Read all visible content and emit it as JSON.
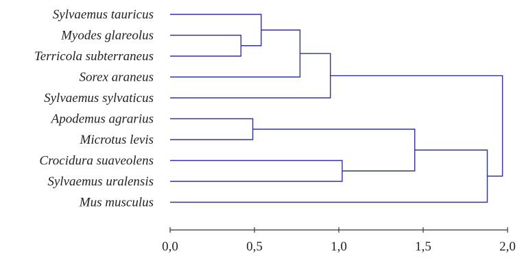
{
  "chart_data": {
    "type": "dendrogram",
    "orientation": "horizontal",
    "leaves": [
      "Sylvaemus tauricus",
      "Myodes glareolus",
      "Terricola subterraneus",
      "Sorex araneus",
      "Sylvaemus sylvaticus",
      "Apodemus agrarius",
      "Microtus levis",
      "Crocidura suaveolens",
      "Sylvaemus uralensis",
      "Mus musculus"
    ],
    "merges": [
      {
        "id": "A",
        "children": [
          "Myodes glareolus",
          "Terricola subterraneus"
        ],
        "distance": 0.42
      },
      {
        "id": "B",
        "children": [
          "Sylvaemus tauricus",
          "A"
        ],
        "distance": 0.54
      },
      {
        "id": "C",
        "children": [
          "B",
          "Sorex araneus"
        ],
        "distance": 0.77
      },
      {
        "id": "D",
        "children": [
          "C",
          "Sylvaemus sylvaticus"
        ],
        "distance": 0.95
      },
      {
        "id": "E",
        "children": [
          "Apodemus agrarius",
          "Microtus levis"
        ],
        "distance": 0.49
      },
      {
        "id": "F",
        "children": [
          "Crocidura suaveolens",
          "Sylvaemus uralensis"
        ],
        "distance": 1.02
      },
      {
        "id": "G",
        "children": [
          "E",
          "F"
        ],
        "distance": 1.45
      },
      {
        "id": "H",
        "children": [
          "G",
          "Mus musculus"
        ],
        "distance": 1.88
      },
      {
        "id": "I",
        "children": [
          "D",
          "H"
        ],
        "distance": 1.97
      }
    ],
    "xlim": [
      0,
      2.0
    ],
    "ticks": [
      0,
      0.5,
      1.0,
      1.5,
      2.0
    ],
    "tick_labels": [
      "0,0",
      "0,5",
      "1,0",
      "1,5",
      "2,0"
    ],
    "line_color": "#2e2eb0"
  }
}
